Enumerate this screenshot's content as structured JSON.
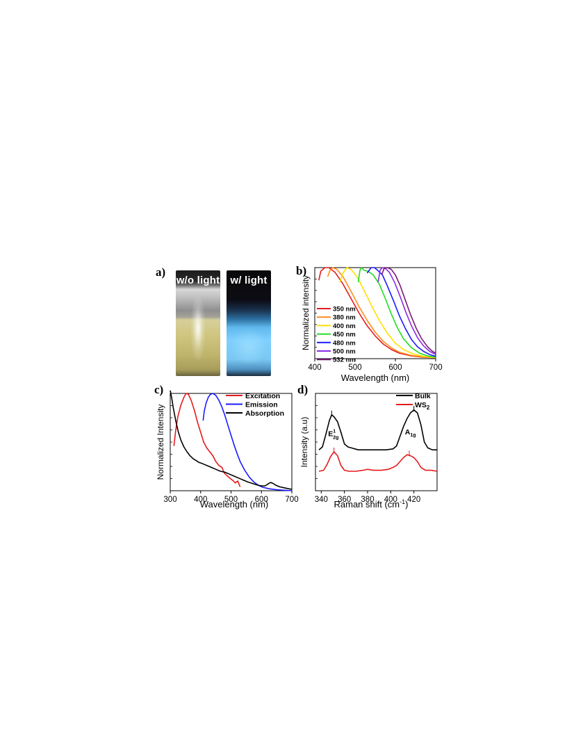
{
  "panels": {
    "a": {
      "label": "a)",
      "left_photo": {
        "caption": "w/o light"
      },
      "right_photo": {
        "caption": "w/  light"
      }
    },
    "b": {
      "label": "b)"
    },
    "c": {
      "label": "c)"
    },
    "d": {
      "label": "d)"
    }
  },
  "colors": {
    "red": "#e41a1c",
    "orange": "#ff8c1a",
    "yellow": "#ffe000",
    "green": "#22dd22",
    "blue": "#1a1aff",
    "violet": "#8a2be2",
    "purple": "#7b1a7b",
    "black": "#000000",
    "glow": "#7fd6ff"
  },
  "chart_data": [
    {
      "id": "b",
      "type": "line",
      "xlabel": "Wavelength (nm)",
      "ylabel": "Normalized intensity",
      "xlim": [
        400,
        700
      ],
      "ylim": [
        0,
        1
      ],
      "xticks": [
        400,
        500,
        600,
        700
      ],
      "legend_position": "left",
      "series": [
        {
          "name": "350 nm",
          "color": "#e41a1c",
          "points": [
            [
              410,
              0.86
            ],
            [
              415,
              0.96
            ],
            [
              425,
              1.0
            ],
            [
              435,
              1.0
            ],
            [
              450,
              0.95
            ],
            [
              470,
              0.82
            ],
            [
              490,
              0.66
            ],
            [
              510,
              0.5
            ],
            [
              530,
              0.36
            ],
            [
              550,
              0.25
            ],
            [
              570,
              0.16
            ],
            [
              590,
              0.1
            ],
            [
              610,
              0.06
            ],
            [
              640,
              0.03
            ],
            [
              670,
              0.015
            ],
            [
              700,
              0.01
            ]
          ]
        },
        {
          "name": "380 nm",
          "color": "#ff8c1a",
          "points": [
            [
              432,
              0.9
            ],
            [
              438,
              0.97
            ],
            [
              445,
              1.0
            ],
            [
              455,
              0.98
            ],
            [
              470,
              0.9
            ],
            [
              490,
              0.74
            ],
            [
              510,
              0.57
            ],
            [
              530,
              0.42
            ],
            [
              550,
              0.29
            ],
            [
              570,
              0.19
            ],
            [
              590,
              0.12
            ],
            [
              610,
              0.07
            ],
            [
              640,
              0.035
            ],
            [
              670,
              0.018
            ],
            [
              700,
              0.01
            ]
          ]
        },
        {
          "name": "400 nm",
          "color": "#ffe000",
          "points": [
            [
              462,
              0.84
            ],
            [
              470,
              0.94
            ],
            [
              480,
              1.0
            ],
            [
              490,
              0.98
            ],
            [
              505,
              0.9
            ],
            [
              520,
              0.77
            ],
            [
              540,
              0.59
            ],
            [
              560,
              0.42
            ],
            [
              580,
              0.28
            ],
            [
              600,
              0.17
            ],
            [
              620,
              0.1
            ],
            [
              645,
              0.05
            ],
            [
              670,
              0.025
            ],
            [
              700,
              0.01
            ]
          ]
        },
        {
          "name": "450 nm",
          "color": "#22dd22",
          "points": [
            [
              508,
              0.84
            ],
            [
              512,
              0.97
            ],
            [
              516,
              1.0
            ],
            [
              522,
              0.97
            ],
            [
              532,
              0.96
            ],
            [
              545,
              0.92
            ],
            [
              560,
              0.82
            ],
            [
              575,
              0.66
            ],
            [
              590,
              0.49
            ],
            [
              605,
              0.34
            ],
            [
              620,
              0.22
            ],
            [
              640,
              0.12
            ],
            [
              660,
              0.06
            ],
            [
              680,
              0.03
            ],
            [
              700,
              0.015
            ]
          ]
        },
        {
          "name": "480 nm",
          "color": "#1a1aff",
          "points": [
            [
              530,
              0.94
            ],
            [
              540,
              1.0
            ],
            [
              548,
              1.0
            ],
            [
              556,
              0.97
            ],
            [
              568,
              0.92
            ],
            [
              580,
              0.8
            ],
            [
              595,
              0.64
            ],
            [
              610,
              0.47
            ],
            [
              625,
              0.33
            ],
            [
              640,
              0.21
            ],
            [
              655,
              0.13
            ],
            [
              670,
              0.08
            ],
            [
              685,
              0.045
            ],
            [
              700,
              0.025
            ]
          ]
        },
        {
          "name": "500 nm",
          "color": "#8a2be2",
          "points": [
            [
              557,
              0.84
            ],
            [
              562,
              0.97
            ],
            [
              567,
              1.0
            ],
            [
              575,
              0.99
            ],
            [
              585,
              0.95
            ],
            [
              598,
              0.84
            ],
            [
              612,
              0.68
            ],
            [
              626,
              0.51
            ],
            [
              640,
              0.36
            ],
            [
              655,
              0.23
            ],
            [
              670,
              0.14
            ],
            [
              685,
              0.08
            ],
            [
              700,
              0.045
            ]
          ]
        },
        {
          "name": "532 nm",
          "color": "#7b1a7b",
          "points": [
            [
              566,
              0.92
            ],
            [
              572,
              0.99
            ],
            [
              580,
              1.0
            ],
            [
              590,
              0.98
            ],
            [
              600,
              0.92
            ],
            [
              612,
              0.8
            ],
            [
              625,
              0.64
            ],
            [
              638,
              0.48
            ],
            [
              652,
              0.33
            ],
            [
              665,
              0.22
            ],
            [
              680,
              0.13
            ],
            [
              692,
              0.08
            ],
            [
              700,
              0.06
            ]
          ]
        }
      ]
    },
    {
      "id": "c",
      "type": "line",
      "xlabel": "Wavelength (nm)",
      "ylabel": "Normalized Intensity",
      "xlim": [
        300,
        700
      ],
      "ylim": [
        0,
        1
      ],
      "xticks": [
        300,
        400,
        500,
        600,
        700
      ],
      "legend_position": "top-right",
      "series": [
        {
          "name": "Excitation",
          "color": "#e41a1c",
          "points": [
            [
              312,
              0.46
            ],
            [
              318,
              0.62
            ],
            [
              325,
              0.76
            ],
            [
              335,
              0.88
            ],
            [
              345,
              0.96
            ],
            [
              352,
              1.0
            ],
            [
              360,
              0.99
            ],
            [
              370,
              0.92
            ],
            [
              380,
              0.82
            ],
            [
              390,
              0.7
            ],
            [
              400,
              0.6
            ],
            [
              410,
              0.5
            ],
            [
              420,
              0.44
            ],
            [
              430,
              0.4
            ],
            [
              440,
              0.36
            ],
            [
              450,
              0.3
            ],
            [
              460,
              0.26
            ],
            [
              470,
              0.24
            ],
            [
              478,
              0.18
            ],
            [
              485,
              0.16
            ],
            [
              492,
              0.14
            ],
            [
              500,
              0.12
            ],
            [
              508,
              0.1
            ],
            [
              514,
              0.08
            ],
            [
              518,
              0.09
            ],
            [
              522,
              0.1
            ],
            [
              526,
              0.07
            ],
            [
              530,
              0.04
            ]
          ]
        },
        {
          "name": "Emission",
          "color": "#1a1aff",
          "points": [
            [
              408,
              0.72
            ],
            [
              412,
              0.82
            ],
            [
              418,
              0.9
            ],
            [
              425,
              0.96
            ],
            [
              432,
              0.99
            ],
            [
              440,
              1.0
            ],
            [
              450,
              0.98
            ],
            [
              460,
              0.93
            ],
            [
              470,
              0.86
            ],
            [
              480,
              0.77
            ],
            [
              490,
              0.67
            ],
            [
              500,
              0.57
            ],
            [
              510,
              0.47
            ],
            [
              520,
              0.38
            ],
            [
              530,
              0.3
            ],
            [
              545,
              0.21
            ],
            [
              560,
              0.14
            ],
            [
              575,
              0.09
            ],
            [
              590,
              0.055
            ],
            [
              605,
              0.035
            ],
            [
              625,
              0.02
            ],
            [
              650,
              0.01
            ],
            [
              675,
              0.005
            ],
            [
              700,
              0.0
            ]
          ]
        },
        {
          "name": "Absorption",
          "color": "#000000",
          "points": [
            [
              300,
              1.03
            ],
            [
              305,
              0.95
            ],
            [
              310,
              0.85
            ],
            [
              318,
              0.72
            ],
            [
              326,
              0.61
            ],
            [
              335,
              0.52
            ],
            [
              345,
              0.45
            ],
            [
              355,
              0.4
            ],
            [
              365,
              0.36
            ],
            [
              375,
              0.33
            ],
            [
              385,
              0.31
            ],
            [
              395,
              0.29
            ],
            [
              405,
              0.28
            ],
            [
              420,
              0.26
            ],
            [
              435,
              0.24
            ],
            [
              450,
              0.22
            ],
            [
              465,
              0.2
            ],
            [
              480,
              0.19
            ],
            [
              495,
              0.17
            ],
            [
              510,
              0.15
            ],
            [
              525,
              0.13
            ],
            [
              540,
              0.11
            ],
            [
              555,
              0.09
            ],
            [
              570,
              0.075
            ],
            [
              585,
              0.06
            ],
            [
              600,
              0.05
            ],
            [
              612,
              0.05
            ],
            [
              622,
              0.07
            ],
            [
              630,
              0.085
            ],
            [
              638,
              0.075
            ],
            [
              648,
              0.055
            ],
            [
              660,
              0.04
            ],
            [
              675,
              0.03
            ],
            [
              690,
              0.02
            ],
            [
              700,
              0.015
            ]
          ]
        }
      ]
    },
    {
      "id": "d",
      "type": "line",
      "xlabel": "Raman shift (cm",
      "xlabel_sup": "-1",
      "xlabel_close": ")",
      "ylabel": "Intensity (a.u)",
      "xlim": [
        335,
        440
      ],
      "ylim": [
        0,
        1
      ],
      "xticks": [
        340,
        360,
        380,
        400,
        420
      ],
      "legend_position": "top-right",
      "annotations": [
        {
          "text": "E",
          "sup": "1",
          "sub": "2g",
          "x": 350.5,
          "y": 0.56
        },
        {
          "text": "A",
          "sub": "1g",
          "x": 417,
          "y": 0.58
        }
      ],
      "series": [
        {
          "name": "Bulk",
          "name_sub": "",
          "color": "#000000",
          "points": [
            [
              338,
              0.42
            ],
            [
              341,
              0.45
            ],
            [
              344,
              0.58
            ],
            [
              347,
              0.72
            ],
            [
              349,
              0.78
            ],
            [
              351,
              0.76
            ],
            [
              354,
              0.71
            ],
            [
              357,
              0.6
            ],
            [
              360,
              0.48
            ],
            [
              363,
              0.45
            ],
            [
              366,
              0.44
            ],
            [
              369,
              0.43
            ],
            [
              372,
              0.42
            ],
            [
              380,
              0.42
            ],
            [
              390,
              0.42
            ],
            [
              396,
              0.42
            ],
            [
              402,
              0.43
            ],
            [
              405,
              0.46
            ],
            [
              408,
              0.56
            ],
            [
              411,
              0.66
            ],
            [
              414,
              0.74
            ],
            [
              417,
              0.8
            ],
            [
              420,
              0.83
            ],
            [
              423,
              0.8
            ],
            [
              426,
              0.68
            ],
            [
              429,
              0.5
            ],
            [
              432,
              0.44
            ],
            [
              436,
              0.42
            ],
            [
              440,
              0.42
            ]
          ]
        },
        {
          "name": "WS",
          "name_sub": "2",
          "color": "#e41a1c",
          "points": [
            [
              338,
              0.2
            ],
            [
              342,
              0.21
            ],
            [
              345,
              0.27
            ],
            [
              348,
              0.35
            ],
            [
              351,
              0.4
            ],
            [
              354,
              0.36
            ],
            [
              357,
              0.26
            ],
            [
              360,
              0.21
            ],
            [
              364,
              0.2
            ],
            [
              370,
              0.2
            ],
            [
              376,
              0.21
            ],
            [
              380,
              0.22
            ],
            [
              385,
              0.21
            ],
            [
              392,
              0.21
            ],
            [
              398,
              0.22
            ],
            [
              402,
              0.24
            ],
            [
              405,
              0.26
            ],
            [
              408,
              0.3
            ],
            [
              411,
              0.34
            ],
            [
              414,
              0.37
            ],
            [
              417,
              0.36
            ],
            [
              420,
              0.34
            ],
            [
              423,
              0.3
            ],
            [
              426,
              0.24
            ],
            [
              430,
              0.21
            ],
            [
              435,
              0.21
            ],
            [
              440,
              0.2
            ]
          ]
        }
      ]
    }
  ]
}
